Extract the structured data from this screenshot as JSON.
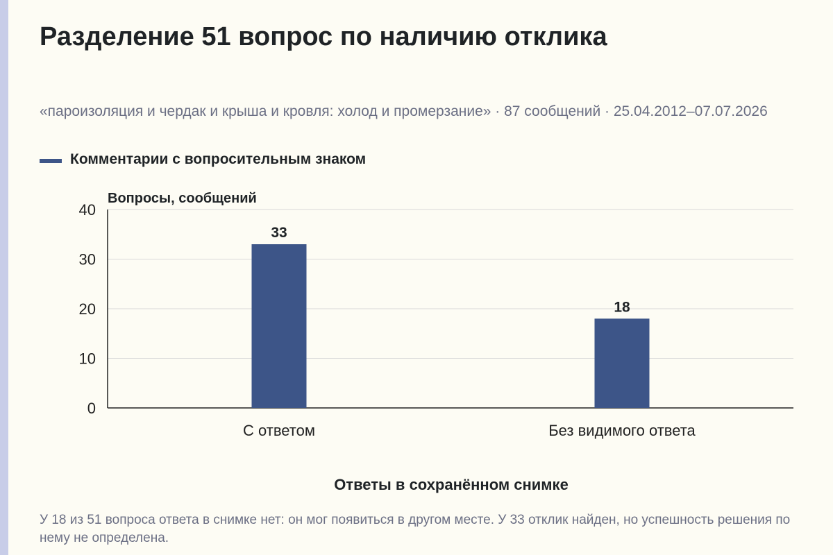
{
  "title": "Разделение 51 вопрос по наличию отклика",
  "subtitle": "«пароизоляция и чердак и крыша и кровля: холод и промерзание» · 87 сообщений · 25.04.2012–07.07.2026",
  "legend_label": "Комментарии с вопросительным знаком",
  "footnote": "У 18 из 51 вопроса ответа в снимке нет: он мог появиться в другом месте. У 33 отклик найден, но успешность решения по нему не определена.",
  "colors": {
    "bar": "#3d5588",
    "grid": "#d9d9d9",
    "axis": "#222222",
    "background": "#fdfcf4",
    "accent_strip": "#c8cde8"
  },
  "chart_data": {
    "type": "bar",
    "title": "Разделение 51 вопрос по наличию отклика",
    "ylabel": "Вопросы, сообщений",
    "xlabel": "Ответы в сохранённом снимке",
    "categories": [
      "С ответом",
      "Без видимого ответа"
    ],
    "series": [
      {
        "name": "Комментарии с вопросительным знаком",
        "values": [
          33,
          18
        ]
      }
    ],
    "ylim": [
      0,
      40
    ],
    "yticks": [
      0,
      10,
      20,
      30,
      40
    ],
    "grid": true,
    "legend": "top-left",
    "data_labels": true
  }
}
